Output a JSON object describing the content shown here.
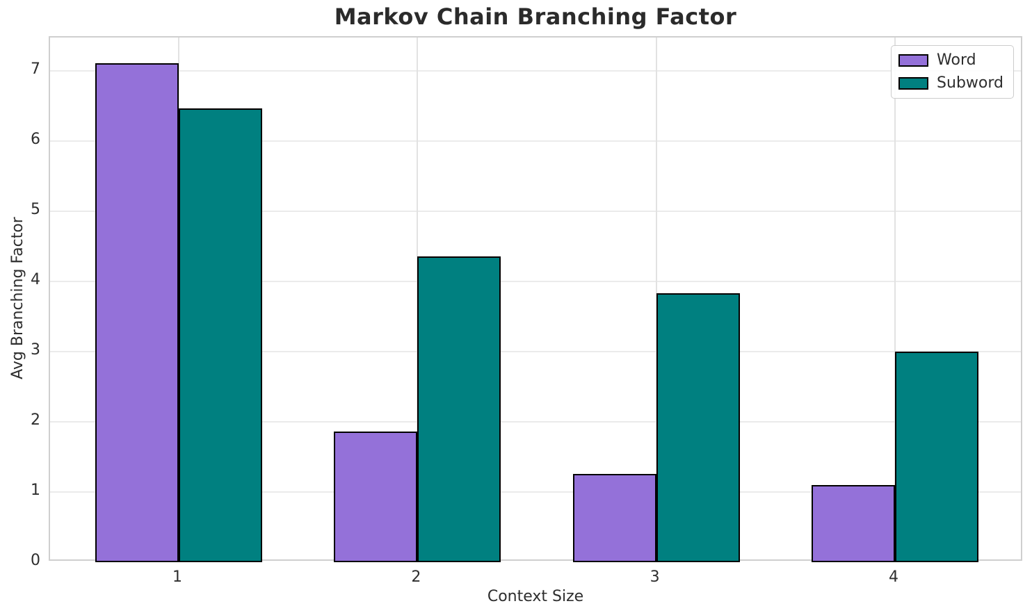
{
  "chart_data": {
    "type": "bar",
    "title": "Markov Chain Branching Factor",
    "xlabel": "Context Size",
    "ylabel": "Avg Branching Factor",
    "categories": [
      "1",
      "2",
      "3",
      "4"
    ],
    "series": [
      {
        "name": "Word",
        "color": "#9471d9",
        "edge_color": "#000000",
        "values": [
          7.1,
          1.86,
          1.26,
          1.1
        ]
      },
      {
        "name": "Subword",
        "color": "#008080",
        "edge_color": "#000000",
        "values": [
          6.46,
          4.35,
          3.83,
          3.0
        ]
      }
    ],
    "yticks": [
      "0",
      "1",
      "2",
      "3",
      "4",
      "5",
      "6",
      "7"
    ],
    "ylim": [
      0,
      7.47
    ],
    "grid": "on",
    "legend_position": "upper-right",
    "bar_group_width_fraction": 0.7,
    "background_color": "#ffffff",
    "grid_color": "#ebebeb",
    "spine_color": "#cfcfcf",
    "text_color": "#2e2e2e"
  }
}
